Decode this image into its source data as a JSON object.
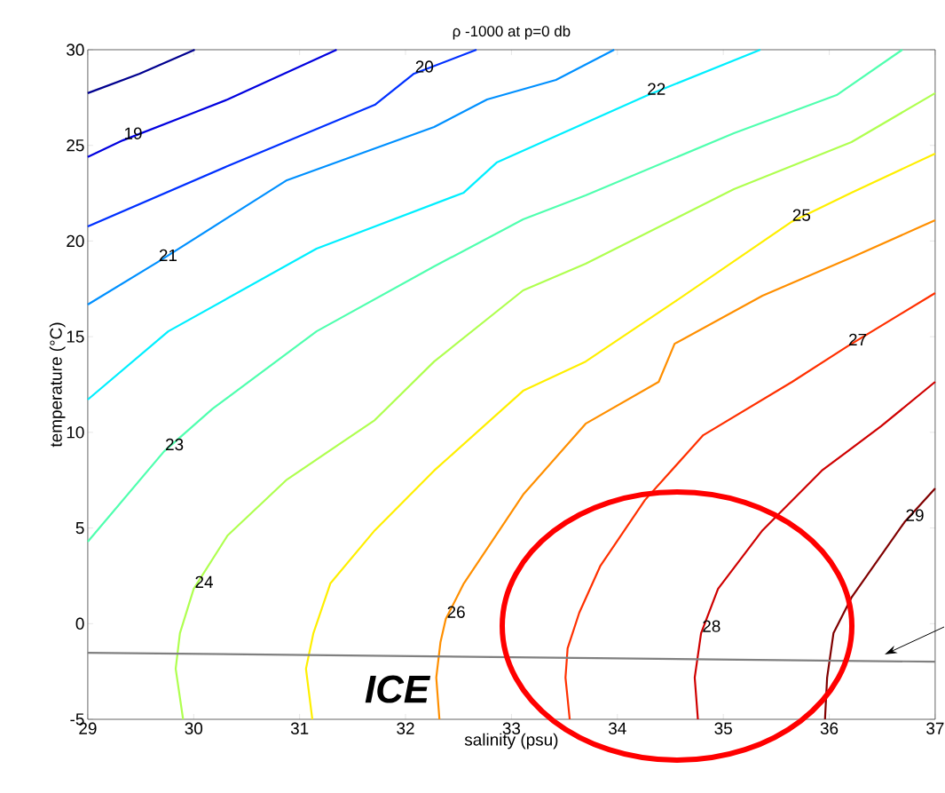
{
  "chart_data": {
    "type": "line",
    "title": "ρ -1000 at p=0 db",
    "xlabel": "salinity (psu)",
    "ylabel": "temperature (°C)",
    "xlim": [
      29,
      37
    ],
    "ylim": [
      -5,
      30
    ],
    "xticks": [
      29,
      30,
      31,
      32,
      33,
      34,
      35,
      36,
      37
    ],
    "yticks": [
      -5,
      0,
      5,
      10,
      15,
      20,
      25,
      30
    ],
    "series": [
      {
        "color": "#00008f",
        "x": [
          29,
          29.49,
          30.01
        ],
        "values": [
          27.73,
          28.75,
          30
        ]
      },
      {
        "color": "#0000df",
        "x": [
          29,
          29.33,
          30,
          30.32,
          31.35
        ],
        "values": [
          24.4,
          25.26,
          26.7,
          27.4,
          30
        ]
      },
      {
        "color": "#0030ff",
        "x": [
          29,
          30.32,
          31.71,
          32.08,
          32.67
        ],
        "values": [
          20.76,
          23.92,
          27.12,
          28.75,
          30
        ]
      },
      {
        "color": "#0090ff",
        "x": [
          29,
          29.66,
          30.88,
          32.27,
          32.77,
          33.42,
          33.97
        ],
        "values": [
          16.68,
          18.9,
          23.18,
          25.96,
          27.4,
          28.42,
          30
        ]
      },
      {
        "color": "#00efff",
        "x": [
          29,
          29.76,
          31.16,
          32.55,
          32.86,
          34.27,
          35.35
        ],
        "values": [
          11.71,
          15.28,
          19.6,
          22.53,
          24.1,
          27.59,
          30
        ]
      },
      {
        "color": "#50ffaf",
        "x": [
          29,
          29.72,
          30.18,
          31.16,
          32.27,
          33.11,
          33.7,
          35.1,
          36.07,
          36.69
        ],
        "values": [
          4.28,
          9.0,
          11.24,
          15.28,
          18.67,
          21.13,
          22.39,
          25.64,
          27.63,
          30
        ]
      },
      {
        "color": "#afff50",
        "x": [
          29.9,
          29.83,
          29.87,
          30.0,
          30.32,
          30.88,
          31.71,
          32.27,
          33.11,
          33.7,
          35.1,
          36.21,
          37
        ],
        "values": [
          -5,
          -2.36,
          -0.5,
          1.82,
          4.61,
          7.53,
          10.64,
          13.7,
          17.42,
          18.81,
          22.71,
          25.17,
          27.73
        ]
      },
      {
        "color": "#ffef00",
        "x": [
          31.12,
          31.06,
          31.13,
          31.29,
          31.71,
          32.27,
          33.11,
          33.7,
          34.54,
          35.64,
          36.21,
          37
        ],
        "values": [
          -5,
          -2.36,
          -0.5,
          2.1,
          4.88,
          8.0,
          12.17,
          13.7,
          16.82,
          20.99,
          22.53,
          24.57
        ]
      },
      {
        "color": "#ff8f00",
        "x": [
          32.32,
          32.29,
          32.33,
          32.38,
          32.55,
          33.11,
          33.7,
          34.39,
          34.54,
          35.37,
          36.21,
          37
        ],
        "values": [
          -5,
          -2.82,
          -0.96,
          0.24,
          2.1,
          6.74,
          10.45,
          12.64,
          14.63,
          17.14,
          19.14,
          21.09
        ]
      },
      {
        "color": "#ff3000",
        "x": [
          33.55,
          33.51,
          33.53,
          33.64,
          33.84,
          34.26,
          34.81,
          35.65,
          36.17,
          37
        ],
        "values": [
          -5,
          -2.82,
          -1.29,
          0.57,
          3.03,
          6.46,
          9.85,
          12.64,
          14.49,
          17.28
        ]
      },
      {
        "color": "#cf0000",
        "x": [
          34.76,
          34.73,
          34.79,
          34.95,
          35.37,
          35.93,
          36.49,
          37
        ],
        "values": [
          -5,
          -2.82,
          -0.5,
          1.82,
          4.88,
          8.0,
          10.32,
          12.64
        ]
      },
      {
        "color": "#800000",
        "x": [
          35.96,
          35.98,
          36.04,
          36.21,
          36.71,
          37
        ],
        "values": [
          -5,
          -2.82,
          -0.5,
          1.36,
          5.3,
          7.07
        ]
      },
      {
        "color": "#808080",
        "x": [
          29,
          37
        ],
        "values": [
          -1.52,
          -1.99
        ]
      }
    ],
    "annotations": [
      {
        "text": "19",
        "x": 29.33,
        "y": 25.26
      },
      {
        "text": "20",
        "x": 32.08,
        "y": 28.75
      },
      {
        "text": "21",
        "x": 29.66,
        "y": 18.9
      },
      {
        "text": "22",
        "x": 34.27,
        "y": 27.59
      },
      {
        "text": "23",
        "x": 29.72,
        "y": 9.0
      },
      {
        "text": "24",
        "x": 30.0,
        "y": 1.82
      },
      {
        "text": "25",
        "x": 35.64,
        "y": 20.99
      },
      {
        "text": "26",
        "x": 32.38,
        "y": 0.24
      },
      {
        "text": "27",
        "x": 36.17,
        "y": 14.49
      },
      {
        "text": "28",
        "x": 34.79,
        "y": -0.5
      },
      {
        "text": "29",
        "x": 36.71,
        "y": 5.3
      },
      "ICE"
    ]
  }
}
